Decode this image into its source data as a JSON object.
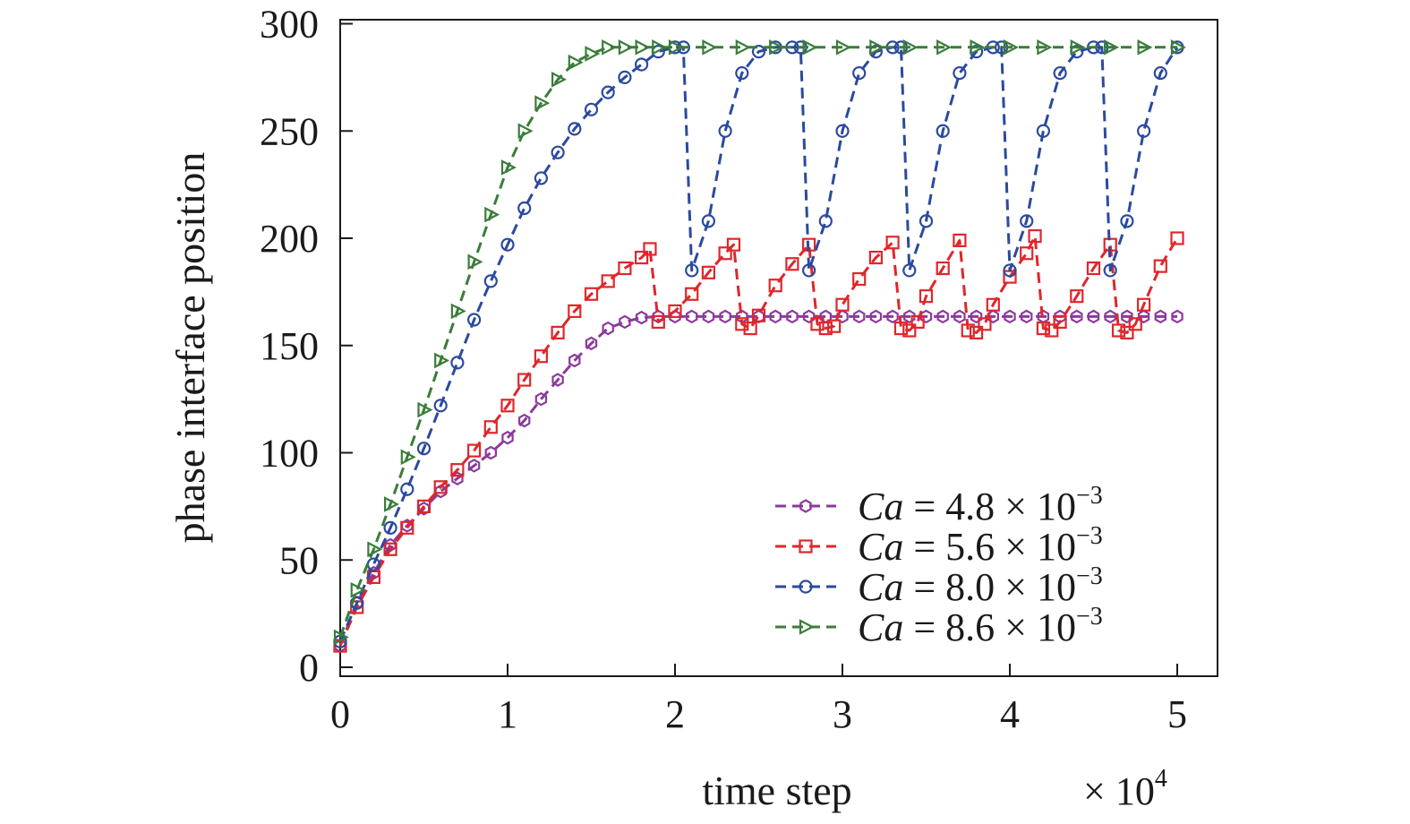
{
  "chart_data": {
    "type": "line",
    "title": "",
    "xlabel": "time step",
    "ylabel": "phase interface position",
    "x_multiplier": "× 10",
    "x_multiplier_exp": "4",
    "xlim": [
      0,
      5.25
    ],
    "ylim": [
      0,
      300
    ],
    "xticks": [
      "0",
      "1",
      "2",
      "3",
      "4",
      "5"
    ],
    "yticks": [
      "0",
      "50",
      "100",
      "150",
      "200",
      "250",
      "300"
    ],
    "grid": false,
    "legend_position": "bottom-right",
    "series": [
      {
        "name_var": "Ca",
        "name_rest": " = 4.8 × 10",
        "name_exp": "−3",
        "color": "#8b3a9b",
        "marker": "hexagon",
        "x": [
          0.0,
          0.1,
          0.2,
          0.3,
          0.4,
          0.5,
          0.6,
          0.7,
          0.8,
          0.9,
          1.0,
          1.1,
          1.2,
          1.3,
          1.4,
          1.5,
          1.6,
          1.7,
          1.8,
          1.9,
          2.0,
          2.1,
          2.2,
          2.3,
          2.4,
          2.5,
          2.6,
          2.7,
          2.8,
          2.9,
          3.0,
          3.1,
          3.2,
          3.3,
          3.4,
          3.5,
          3.6,
          3.7,
          3.8,
          3.9,
          4.0,
          4.1,
          4.2,
          4.3,
          4.4,
          4.5,
          4.6,
          4.7,
          4.8,
          4.9,
          5.0
        ],
        "y": [
          10,
          30,
          44,
          57,
          66,
          74,
          82,
          88,
          94,
          100,
          107,
          115,
          125,
          134,
          143,
          151,
          158,
          161,
          163,
          163.5,
          163.5,
          163.5,
          163.5,
          163.5,
          163.5,
          163.5,
          163.5,
          163.5,
          163.5,
          163.5,
          163.5,
          163.5,
          163.5,
          163.5,
          163.5,
          163.5,
          163.5,
          163.5,
          163.5,
          163.5,
          163.5,
          163.5,
          163.5,
          163.5,
          163.5,
          163.5,
          163.5,
          163.5,
          163.5,
          163.5,
          163.5
        ]
      },
      {
        "name_var": "Ca",
        "name_rest": " = 5.6 × 10",
        "name_exp": "−3",
        "color": "#e0262a",
        "marker": "square",
        "x": [
          0.0,
          0.1,
          0.2,
          0.3,
          0.4,
          0.5,
          0.6,
          0.7,
          0.8,
          0.9,
          1.0,
          1.1,
          1.2,
          1.3,
          1.4,
          1.5,
          1.6,
          1.7,
          1.8,
          1.85,
          1.9,
          2.0,
          2.1,
          2.2,
          2.3,
          2.35,
          2.4,
          2.45,
          2.5,
          2.6,
          2.7,
          2.8,
          2.85,
          2.9,
          2.95,
          3.0,
          3.1,
          3.2,
          3.3,
          3.35,
          3.4,
          3.45,
          3.5,
          3.6,
          3.7,
          3.75,
          3.8,
          3.85,
          3.9,
          4.0,
          4.1,
          4.15,
          4.2,
          4.25,
          4.3,
          4.4,
          4.5,
          4.6,
          4.65,
          4.7,
          4.75,
          4.8,
          4.9,
          5.0
        ],
        "y": [
          10,
          28,
          42,
          55,
          65,
          75,
          84,
          92,
          101,
          112,
          122,
          134,
          145,
          156,
          166,
          174,
          180,
          186,
          191,
          195,
          161,
          166,
          174,
          184,
          193,
          197,
          160,
          158,
          164,
          178,
          188,
          197,
          160,
          158,
          159,
          169,
          181,
          191,
          198,
          158,
          157,
          161,
          173,
          186,
          199,
          157,
          156,
          160,
          169,
          182,
          193,
          201,
          158,
          157,
          161,
          173,
          186,
          197,
          157,
          156,
          160,
          169,
          187,
          200
        ]
      },
      {
        "name_var": "Ca",
        "name_rest": " = 8.0 × 10",
        "name_exp": "−3",
        "color": "#2b4a9e",
        "marker": "circle",
        "x": [
          0.0,
          0.1,
          0.2,
          0.3,
          0.4,
          0.5,
          0.6,
          0.7,
          0.8,
          0.9,
          1.0,
          1.1,
          1.2,
          1.3,
          1.4,
          1.5,
          1.6,
          1.7,
          1.8,
          1.9,
          2.0,
          2.05,
          2.1,
          2.2,
          2.3,
          2.4,
          2.5,
          2.6,
          2.7,
          2.75,
          2.8,
          2.9,
          3.0,
          3.1,
          3.2,
          3.3,
          3.35,
          3.4,
          3.5,
          3.6,
          3.7,
          3.8,
          3.9,
          3.95,
          4.0,
          4.1,
          4.2,
          4.3,
          4.4,
          4.5,
          4.55,
          4.6,
          4.7,
          4.8,
          4.9,
          5.0
        ],
        "y": [
          12,
          30,
          48,
          65,
          83,
          102,
          122,
          142,
          162,
          180,
          197,
          214,
          228,
          240,
          251,
          260,
          268,
          275,
          281,
          287,
          289,
          289,
          185,
          208,
          250,
          277,
          287,
          289,
          289,
          289,
          185,
          208,
          250,
          277,
          287,
          289,
          289,
          185,
          208,
          250,
          277,
          287,
          289,
          289,
          185,
          208,
          250,
          277,
          287,
          289,
          289,
          185,
          208,
          250,
          277,
          289
        ]
      },
      {
        "name_var": "Ca",
        "name_rest": " = 8.6 × 10",
        "name_exp": "−3",
        "color": "#3a7d3a",
        "marker": "triangle-right",
        "x": [
          0.0,
          0.1,
          0.2,
          0.3,
          0.4,
          0.5,
          0.6,
          0.7,
          0.8,
          0.9,
          1.0,
          1.1,
          1.2,
          1.3,
          1.4,
          1.5,
          1.6,
          1.7,
          1.8,
          1.9,
          2.0,
          2.2,
          2.4,
          2.6,
          2.8,
          3.0,
          3.2,
          3.4,
          3.6,
          3.8,
          4.0,
          4.2,
          4.4,
          4.6,
          4.8,
          5.0
        ],
        "y": [
          14,
          36,
          55,
          76,
          98,
          120,
          143,
          166,
          189,
          211,
          233,
          250,
          263,
          274,
          282,
          286,
          289,
          289,
          289,
          289,
          289,
          289,
          289,
          289,
          289,
          289,
          289,
          289,
          289,
          289,
          289,
          289,
          289,
          289,
          289,
          289
        ]
      }
    ]
  }
}
